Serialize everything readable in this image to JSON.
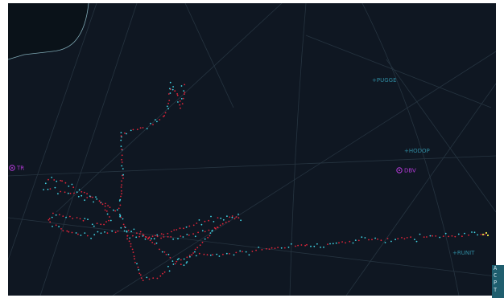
{
  "map": {
    "waypoints": [
      {
        "id": "pugge",
        "label": "PUGGE",
        "type": "fix"
      },
      {
        "id": "hodop",
        "label": "HODOP",
        "type": "fix"
      },
      {
        "id": "runit",
        "label": "RUNIT",
        "type": "fix"
      },
      {
        "id": "tr",
        "label": "TR",
        "type": "navaid"
      },
      {
        "id": "dbv",
        "label": "DBV",
        "type": "navaid"
      }
    ],
    "colors": {
      "background": "#0f1722",
      "land": "#0a1219",
      "coastline": "#7fa9b4",
      "airway": "#263440",
      "track_red": "#e0253a",
      "track_cyan": "#43d6e6",
      "track_latest": "#f1e04a",
      "navaid": "#b23ad6",
      "fix_label": "#2f8aa0",
      "legend_tab": "#1f5e6e"
    },
    "legend_tab": {
      "letters": [
        "A",
        "C",
        "P",
        "T"
      ]
    }
  }
}
